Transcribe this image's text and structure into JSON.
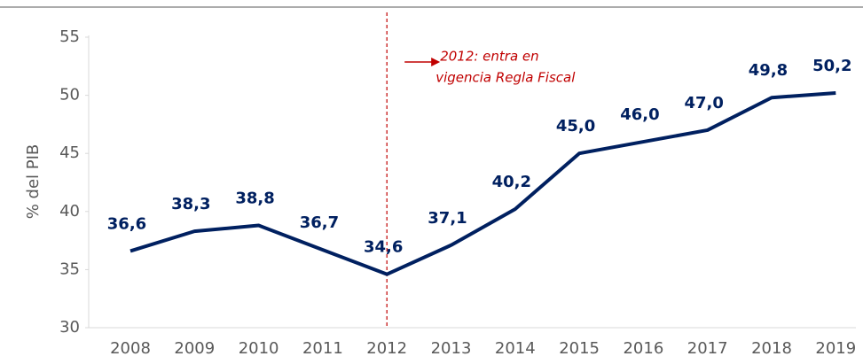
{
  "chart_data": {
    "type": "line",
    "y_label": "% del PIB",
    "categories": [
      "2008",
      "2009",
      "2010",
      "2011",
      "2012",
      "2013",
      "2014",
      "2015",
      "2016",
      "2017",
      "2018",
      "2019"
    ],
    "series": [
      {
        "name": "% del PIB",
        "color": "#002060",
        "values": [
          36.6,
          38.3,
          38.8,
          36.7,
          34.6,
          37.1,
          40.2,
          45.0,
          46.0,
          47.0,
          49.8,
          50.2
        ],
        "value_labels": [
          "36,6",
          "38,3",
          "38,8",
          "36,7",
          "34,6",
          "37,1",
          "40,2",
          "45,0",
          "46,0",
          "47,0",
          "49,8",
          "50,2"
        ]
      }
    ],
    "ylim": [
      30,
      55
    ],
    "yticks": [
      30,
      35,
      40,
      45,
      50,
      55
    ],
    "annotation": {
      "text": [
        "2012: entra en",
        "vigencia Regla Fiscal"
      ],
      "at": "2012",
      "color": "#c00000"
    }
  }
}
